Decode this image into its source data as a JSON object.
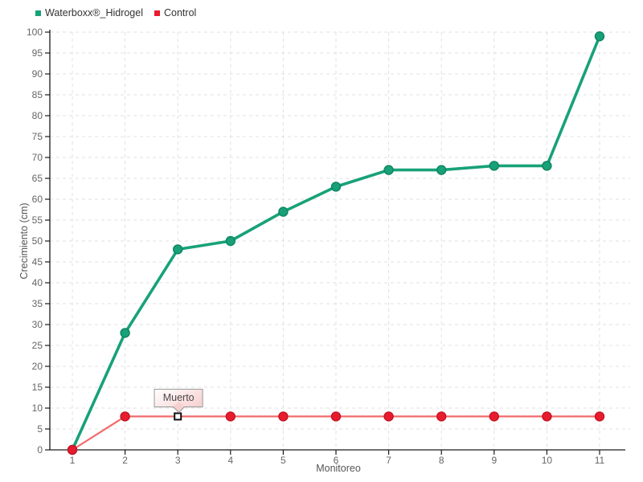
{
  "legend": {
    "items": [
      {
        "label": "Waterboxx®_Hidrogel"
      },
      {
        "label": "Control"
      }
    ]
  },
  "chart_data": {
    "type": "line",
    "x": [
      1,
      2,
      3,
      4,
      5,
      6,
      7,
      8,
      9,
      10,
      11
    ],
    "series": [
      {
        "name": "Waterboxx®_Hidrogel",
        "values": [
          0,
          28,
          48,
          50,
          57,
          63,
          67,
          67,
          68,
          68,
          99
        ],
        "line_color": "#18a179",
        "line_width": 3.6,
        "marker_color": "#18a179",
        "marker_stroke": "#0e8460",
        "marker_radius": 5.5
      },
      {
        "name": "Control",
        "values": [
          0,
          8,
          8,
          8,
          8,
          8,
          8,
          8,
          8,
          8,
          8
        ],
        "line_color": "#f26b6b",
        "line_width": 2.2,
        "marker_color": "#e81c2e",
        "marker_stroke": "#c41424",
        "marker_radius": 5.5
      }
    ],
    "xlabel": "Monitoreo",
    "ylabel": "Crecimiento (cm)",
    "ylim": [
      0,
      100
    ],
    "ytick_step": 5,
    "xticks": [
      "1",
      "2",
      "3",
      "4",
      "5",
      "6",
      "7",
      "8",
      "9",
      "10",
      "11"
    ],
    "grid": true,
    "legend_position": "top-left",
    "annotation": {
      "text": "Muerto",
      "series": "Control",
      "x": 3,
      "y": 8,
      "marker": "open-square"
    }
  },
  "colors": {
    "background": "#ffffff",
    "grid": "#e0e0e0",
    "axis": "#1a1a1a",
    "tick_text": "#666666",
    "axis_title": "#555555",
    "legend_text": "#333333",
    "tooltip_border": "#9a9a9a",
    "tooltip_text": "#4a4a4a"
  }
}
